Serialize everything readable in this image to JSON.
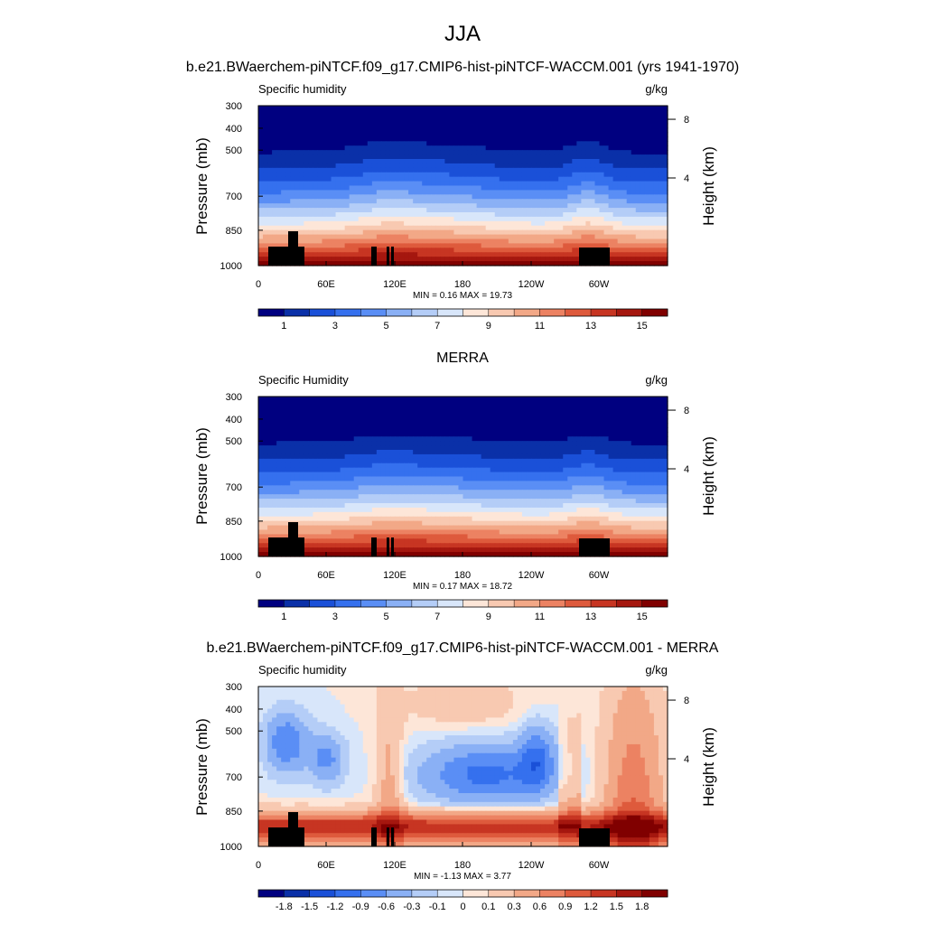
{
  "figure": {
    "title": "JJA",
    "colors": {
      "abs": [
        "#000080",
        "#0a30a8",
        "#1a50d8",
        "#3570ee",
        "#5a8ef5",
        "#8ab0f5",
        "#b4cdf7",
        "#d8e6fa",
        "#fde6d8",
        "#f8c9b1",
        "#f2a887",
        "#ec8262",
        "#de5a3c",
        "#c73522",
        "#a5170f",
        "#800000"
      ],
      "diff": [
        "#000080",
        "#0a30a8",
        "#1a50d8",
        "#3570ee",
        "#5a8ef5",
        "#8ab0f5",
        "#b4cdf7",
        "#d8e6fa",
        "#fde6d8",
        "#f8c9b1",
        "#f2a887",
        "#ec8262",
        "#de5a3c",
        "#c73522",
        "#a5170f",
        "#800000"
      ]
    }
  },
  "chart_data": [
    {
      "type": "contour",
      "panel_title": "b.e21.BWaerchem-piNTCF.f09_g17.CMIP6-hist-piNTCF-WACCM.001 (yrs 1941-1970)",
      "left_label": "Specific humidity",
      "right_label": "g/kg",
      "ylabel": "Pressure (mb)",
      "y2label": "Height (km)",
      "xticks": [
        "0",
        "60E",
        "120E",
        "180",
        "120W",
        "60W"
      ],
      "yticks": [
        "300",
        "400",
        "500",
        "700",
        "850",
        "1000"
      ],
      "y2ticks": [
        "8",
        "4"
      ],
      "minmax": "MIN =   0.16  MAX =   19.73",
      "min": 0.16,
      "max": 19.73,
      "colorbar_labels": [
        "1",
        "3",
        "5",
        "7",
        "9",
        "11",
        "13",
        "15"
      ],
      "colorbar_bins": 16,
      "field_kind": "abs"
    },
    {
      "type": "contour",
      "panel_title": "MERRA",
      "left_label": "Specific Humidity",
      "right_label": "g/kg",
      "ylabel": "Pressure (mb)",
      "y2label": "Height (km)",
      "xticks": [
        "0",
        "60E",
        "120E",
        "180",
        "120W",
        "60W"
      ],
      "yticks": [
        "300",
        "400",
        "500",
        "700",
        "850",
        "1000"
      ],
      "y2ticks": [
        "8",
        "4"
      ],
      "minmax": "MIN =   0.17  MAX =   18.72",
      "min": 0.17,
      "max": 18.72,
      "colorbar_labels": [
        "1",
        "3",
        "5",
        "7",
        "9",
        "11",
        "13",
        "15"
      ],
      "colorbar_bins": 16,
      "field_kind": "abs"
    },
    {
      "type": "contour",
      "panel_title": "b.e21.BWaerchem-piNTCF.f09_g17.CMIP6-hist-piNTCF-WACCM.001 - MERRA",
      "left_label": "Specific humidity",
      "right_label": "g/kg",
      "ylabel": "Pressure (mb)",
      "y2label": "Height (km)",
      "xticks": [
        "0",
        "60E",
        "120E",
        "180",
        "120W",
        "60W"
      ],
      "yticks": [
        "300",
        "400",
        "500",
        "700",
        "850",
        "1000"
      ],
      "y2ticks": [
        "8",
        "4"
      ],
      "minmax": "MIN =  -1.13  MAX =   3.77",
      "min": -1.13,
      "max": 3.77,
      "colorbar_labels": [
        "-1.8",
        "-1.5",
        "-1.2",
        "-0.9",
        "-0.6",
        "-0.3",
        "-0.1",
        "0",
        "0.1",
        "0.3",
        "0.6",
        "0.9",
        "1.2",
        "1.5",
        "1.8"
      ],
      "colorbar_bins": 16,
      "field_kind": "diff"
    }
  ]
}
